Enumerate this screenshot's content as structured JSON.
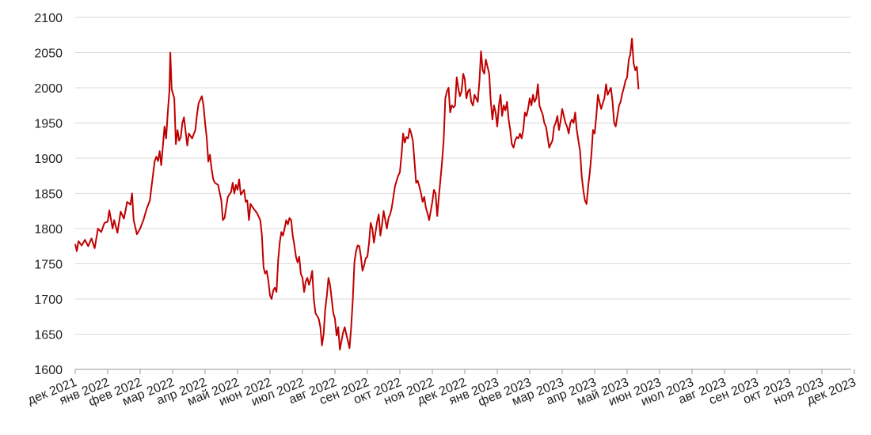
{
  "chart_data": {
    "type": "line",
    "title": "",
    "xlabel": "",
    "ylabel": "",
    "ylim": [
      1600,
      2100
    ],
    "yticks": [
      1600,
      1650,
      1700,
      1750,
      1800,
      1850,
      1900,
      1950,
      2000,
      2050,
      2100
    ],
    "grid": true,
    "legend": "none",
    "line_color": "#c00000",
    "x_labels": [
      "дек 2021",
      "янв 2022",
      "фев 2022",
      "мар 2022",
      "апр 2022",
      "май 2022",
      "июн 2022",
      "июл 2022",
      "авг 2022",
      "сен 2022",
      "окт 2022",
      "ноя 2022",
      "дек 2022",
      "янв 2023",
      "фев 2023",
      "мар 2023",
      "апр 2023",
      "май 2023",
      "июн 2023",
      "июл 2023",
      "авг 2023",
      "сен 2023",
      "окт 2023",
      "ноя 2023",
      "дек 2023"
    ],
    "series": [
      {
        "name": "",
        "points": [
          [
            0.0,
            1778
          ],
          [
            0.05,
            1768
          ],
          [
            0.1,
            1782
          ],
          [
            0.2,
            1776
          ],
          [
            0.3,
            1784
          ],
          [
            0.4,
            1775
          ],
          [
            0.5,
            1786
          ],
          [
            0.6,
            1772
          ],
          [
            0.7,
            1800
          ],
          [
            0.8,
            1795
          ],
          [
            0.9,
            1808
          ],
          [
            1.0,
            1810
          ],
          [
            1.05,
            1826
          ],
          [
            1.15,
            1800
          ],
          [
            1.2,
            1812
          ],
          [
            1.3,
            1794
          ],
          [
            1.4,
            1824
          ],
          [
            1.5,
            1814
          ],
          [
            1.6,
            1838
          ],
          [
            1.7,
            1834
          ],
          [
            1.75,
            1850
          ],
          [
            1.8,
            1812
          ],
          [
            1.9,
            1792
          ],
          [
            2.0,
            1800
          ],
          [
            2.1,
            1812
          ],
          [
            2.2,
            1828
          ],
          [
            2.3,
            1840
          ],
          [
            2.35,
            1860
          ],
          [
            2.45,
            1896
          ],
          [
            2.5,
            1902
          ],
          [
            2.55,
            1896
          ],
          [
            2.6,
            1910
          ],
          [
            2.65,
            1890
          ],
          [
            2.75,
            1945
          ],
          [
            2.8,
            1928
          ],
          [
            2.85,
            1965
          ],
          [
            2.9,
            1995
          ],
          [
            2.93,
            2050
          ],
          [
            2.97,
            1998
          ],
          [
            3.05,
            1985
          ],
          [
            3.1,
            1920
          ],
          [
            3.15,
            1940
          ],
          [
            3.2,
            1925
          ],
          [
            3.25,
            1930
          ],
          [
            3.3,
            1950
          ],
          [
            3.35,
            1958
          ],
          [
            3.4,
            1938
          ],
          [
            3.45,
            1918
          ],
          [
            3.5,
            1935
          ],
          [
            3.6,
            1928
          ],
          [
            3.7,
            1940
          ],
          [
            3.75,
            1962
          ],
          [
            3.8,
            1978
          ],
          [
            3.9,
            1988
          ],
          [
            3.95,
            1975
          ],
          [
            4.0,
            1950
          ],
          [
            4.05,
            1930
          ],
          [
            4.1,
            1895
          ],
          [
            4.15,
            1905
          ],
          [
            4.2,
            1885
          ],
          [
            4.25,
            1870
          ],
          [
            4.3,
            1865
          ],
          [
            4.4,
            1862
          ],
          [
            4.5,
            1840
          ],
          [
            4.55,
            1812
          ],
          [
            4.6,
            1815
          ],
          [
            4.7,
            1845
          ],
          [
            4.8,
            1852
          ],
          [
            4.85,
            1865
          ],
          [
            4.9,
            1850
          ],
          [
            4.95,
            1862
          ],
          [
            5.0,
            1855
          ],
          [
            5.05,
            1870
          ],
          [
            5.1,
            1848
          ],
          [
            5.2,
            1855
          ],
          [
            5.25,
            1838
          ],
          [
            5.3,
            1840
          ],
          [
            5.35,
            1812
          ],
          [
            5.4,
            1835
          ],
          [
            5.5,
            1828
          ],
          [
            5.6,
            1822
          ],
          [
            5.7,
            1812
          ],
          [
            5.75,
            1790
          ],
          [
            5.8,
            1745
          ],
          [
            5.85,
            1736
          ],
          [
            5.9,
            1740
          ],
          [
            5.95,
            1725
          ],
          [
            6.0,
            1705
          ],
          [
            6.05,
            1700
          ],
          [
            6.1,
            1712
          ],
          [
            6.15,
            1716
          ],
          [
            6.2,
            1710
          ],
          [
            6.25,
            1755
          ],
          [
            6.3,
            1780
          ],
          [
            6.35,
            1795
          ],
          [
            6.4,
            1790
          ],
          [
            6.45,
            1800
          ],
          [
            6.5,
            1812
          ],
          [
            6.55,
            1806
          ],
          [
            6.6,
            1815
          ],
          [
            6.65,
            1812
          ],
          [
            6.7,
            1790
          ],
          [
            6.75,
            1776
          ],
          [
            6.8,
            1760
          ],
          [
            6.85,
            1752
          ],
          [
            6.9,
            1760
          ],
          [
            6.95,
            1736
          ],
          [
            7.0,
            1730
          ],
          [
            7.05,
            1710
          ],
          [
            7.1,
            1725
          ],
          [
            7.15,
            1730
          ],
          [
            7.2,
            1720
          ],
          [
            7.25,
            1728
          ],
          [
            7.3,
            1740
          ],
          [
            7.35,
            1700
          ],
          [
            7.4,
            1680
          ],
          [
            7.45,
            1676
          ],
          [
            7.5,
            1672
          ],
          [
            7.55,
            1660
          ],
          [
            7.6,
            1634
          ],
          [
            7.65,
            1650
          ],
          [
            7.7,
            1685
          ],
          [
            7.75,
            1705
          ],
          [
            7.8,
            1730
          ],
          [
            7.85,
            1720
          ],
          [
            7.9,
            1700
          ],
          [
            7.95,
            1680
          ],
          [
            8.0,
            1672
          ],
          [
            8.05,
            1648
          ],
          [
            8.1,
            1660
          ],
          [
            8.15,
            1628
          ],
          [
            8.2,
            1640
          ],
          [
            8.25,
            1652
          ],
          [
            8.3,
            1660
          ],
          [
            8.35,
            1650
          ],
          [
            8.4,
            1640
          ],
          [
            8.45,
            1630
          ],
          [
            8.5,
            1660
          ],
          [
            8.55,
            1700
          ],
          [
            8.6,
            1752
          ],
          [
            8.65,
            1768
          ],
          [
            8.7,
            1776
          ],
          [
            8.75,
            1775
          ],
          [
            8.8,
            1760
          ],
          [
            8.85,
            1740
          ],
          [
            8.9,
            1748
          ],
          [
            8.95,
            1758
          ],
          [
            9.0,
            1760
          ],
          [
            9.05,
            1780
          ],
          [
            9.1,
            1808
          ],
          [
            9.15,
            1800
          ],
          [
            9.2,
            1780
          ],
          [
            9.25,
            1795
          ],
          [
            9.3,
            1810
          ],
          [
            9.35,
            1820
          ],
          [
            9.4,
            1790
          ],
          [
            9.45,
            1805
          ],
          [
            9.5,
            1825
          ],
          [
            9.55,
            1812
          ],
          [
            9.6,
            1800
          ],
          [
            9.65,
            1815
          ],
          [
            9.7,
            1820
          ],
          [
            9.75,
            1830
          ],
          [
            9.8,
            1845
          ],
          [
            9.85,
            1860
          ],
          [
            9.9,
            1868
          ],
          [
            9.95,
            1875
          ],
          [
            10.0,
            1880
          ],
          [
            10.05,
            1905
          ],
          [
            10.1,
            1935
          ],
          [
            10.15,
            1922
          ],
          [
            10.2,
            1930
          ],
          [
            10.25,
            1928
          ],
          [
            10.3,
            1942
          ],
          [
            10.35,
            1935
          ],
          [
            10.4,
            1925
          ],
          [
            10.45,
            1895
          ],
          [
            10.5,
            1865
          ],
          [
            10.55,
            1868
          ],
          [
            10.6,
            1860
          ],
          [
            10.65,
            1850
          ],
          [
            10.7,
            1838
          ],
          [
            10.75,
            1845
          ],
          [
            10.8,
            1830
          ],
          [
            10.85,
            1822
          ],
          [
            10.9,
            1812
          ],
          [
            10.95,
            1825
          ],
          [
            11.0,
            1838
          ],
          [
            11.05,
            1855
          ],
          [
            11.1,
            1850
          ],
          [
            11.15,
            1818
          ],
          [
            11.2,
            1845
          ],
          [
            11.25,
            1870
          ],
          [
            11.3,
            1895
          ],
          [
            11.35,
            1925
          ],
          [
            11.4,
            1985
          ],
          [
            11.45,
            1995
          ],
          [
            11.5,
            2000
          ],
          [
            11.55,
            1965
          ],
          [
            11.6,
            1975
          ],
          [
            11.65,
            1972
          ],
          [
            11.7,
            1975
          ],
          [
            11.75,
            2015
          ],
          [
            11.8,
            2000
          ],
          [
            11.85,
            1988
          ],
          [
            11.9,
            1995
          ],
          [
            11.95,
            2020
          ],
          [
            12.0,
            2012
          ],
          [
            12.05,
            1985
          ],
          [
            12.1,
            1995
          ],
          [
            12.15,
            1998
          ],
          [
            12.2,
            1980
          ],
          [
            12.25,
            1975
          ],
          [
            12.3,
            1990
          ],
          [
            12.35,
            1985
          ],
          [
            12.4,
            1980
          ],
          [
            12.45,
            2010
          ],
          [
            12.5,
            2052
          ],
          [
            12.55,
            2025
          ],
          [
            12.6,
            2020
          ],
          [
            12.65,
            2040
          ],
          [
            12.7,
            2030
          ],
          [
            12.75,
            2020
          ],
          [
            12.8,
            1980
          ],
          [
            12.85,
            1955
          ],
          [
            12.9,
            1975
          ],
          [
            12.95,
            1965
          ],
          [
            13.0,
            1945
          ],
          [
            13.05,
            1975
          ],
          [
            13.1,
            1990
          ],
          [
            13.15,
            1960
          ],
          [
            13.2,
            1975
          ],
          [
            13.25,
            1968
          ],
          [
            13.3,
            1980
          ],
          [
            13.35,
            1955
          ],
          [
            13.4,
            1940
          ],
          [
            13.45,
            1920
          ],
          [
            13.5,
            1915
          ],
          [
            13.55,
            1925
          ],
          [
            13.6,
            1930
          ],
          [
            13.65,
            1928
          ],
          [
            13.7,
            1935
          ],
          [
            13.75,
            1928
          ],
          [
            13.8,
            1940
          ],
          [
            13.85,
            1965
          ],
          [
            13.9,
            1960
          ],
          [
            13.95,
            1970
          ],
          [
            14.0,
            1985
          ],
          [
            14.05,
            1975
          ],
          [
            14.1,
            1990
          ],
          [
            14.15,
            1980
          ],
          [
            14.2,
            1985
          ],
          [
            14.25,
            2005
          ],
          [
            14.3,
            1975
          ],
          [
            14.35,
            1968
          ],
          [
            14.4,
            1962
          ],
          [
            14.45,
            1950
          ],
          [
            14.5,
            1945
          ],
          [
            14.55,
            1930
          ],
          [
            14.6,
            1915
          ],
          [
            14.65,
            1920
          ],
          [
            14.7,
            1925
          ],
          [
            14.75,
            1945
          ],
          [
            14.8,
            1950
          ],
          [
            14.85,
            1960
          ],
          [
            14.9,
            1940
          ],
          [
            14.95,
            1952
          ],
          [
            15.0,
            1970
          ],
          [
            15.05,
            1960
          ],
          [
            15.1,
            1950
          ],
          [
            15.15,
            1945
          ],
          [
            15.2,
            1935
          ],
          [
            15.25,
            1950
          ],
          [
            15.3,
            1955
          ],
          [
            15.35,
            1950
          ],
          [
            15.4,
            1965
          ],
          [
            15.45,
            1940
          ],
          [
            15.5,
            1925
          ],
          [
            15.55,
            1910
          ],
          [
            15.6,
            1875
          ],
          [
            15.65,
            1855
          ],
          [
            15.7,
            1840
          ],
          [
            15.75,
            1835
          ],
          [
            15.8,
            1860
          ],
          [
            15.85,
            1880
          ],
          [
            15.9,
            1905
          ],
          [
            15.95,
            1940
          ],
          [
            16.0,
            1935
          ],
          [
            16.05,
            1960
          ],
          [
            16.1,
            1990
          ],
          [
            16.15,
            1980
          ],
          [
            16.2,
            1970
          ],
          [
            16.25,
            1978
          ],
          [
            16.3,
            1985
          ],
          [
            16.35,
            2005
          ],
          [
            16.4,
            1990
          ],
          [
            16.45,
            1995
          ],
          [
            16.5,
            2000
          ],
          [
            16.55,
            1980
          ],
          [
            16.6,
            1950
          ],
          [
            16.65,
            1945
          ],
          [
            16.7,
            1960
          ],
          [
            16.75,
            1975
          ],
          [
            16.8,
            1980
          ],
          [
            16.85,
            1992
          ],
          [
            16.9,
            2000
          ],
          [
            16.95,
            2010
          ],
          [
            17.0,
            2015
          ],
          [
            17.05,
            2040
          ],
          [
            17.1,
            2048
          ],
          [
            17.15,
            2070
          ],
          [
            17.2,
            2035
          ],
          [
            17.25,
            2025
          ],
          [
            17.3,
            2030
          ],
          [
            17.35,
            1998
          ]
        ]
      }
    ]
  }
}
